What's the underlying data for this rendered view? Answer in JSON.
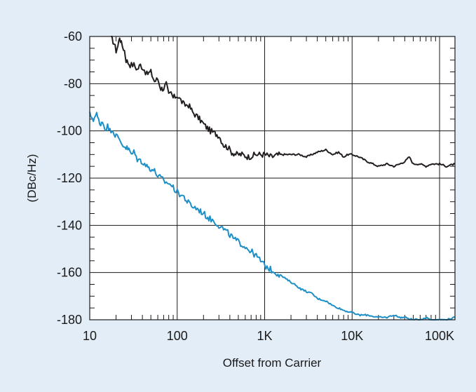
{
  "chart_data": {
    "type": "line",
    "title": "",
    "xlabel": "Offset from Carrier",
    "ylabel": "(DBc/Hz)",
    "x_scale": "log",
    "xlim": [
      10,
      150000
    ],
    "ylim": [
      -180,
      -60
    ],
    "grid": true,
    "legend": "none",
    "x_ticks": [
      {
        "value": 10,
        "label": "10"
      },
      {
        "value": 100,
        "label": "100"
      },
      {
        "value": 1000,
        "label": "1K"
      },
      {
        "value": 10000,
        "label": "10K"
      },
      {
        "value": 100000,
        "label": "100K"
      }
    ],
    "y_ticks": [
      {
        "value": -60,
        "label": "-60"
      },
      {
        "value": -80,
        "label": "-80"
      },
      {
        "value": -100,
        "label": "-100"
      },
      {
        "value": -120,
        "label": "-120"
      },
      {
        "value": -140,
        "label": "-140"
      },
      {
        "value": -160,
        "label": "-160"
      },
      {
        "value": -180,
        "label": "-180"
      }
    ],
    "series": [
      {
        "color": "#231f20",
        "points": [
          [
            17.5,
            -60
          ],
          [
            19,
            -63
          ],
          [
            20,
            -66
          ],
          [
            21,
            -64
          ],
          [
            22,
            -60
          ],
          [
            23,
            -63
          ],
          [
            25,
            -66
          ],
          [
            26,
            -70
          ],
          [
            29,
            -72
          ],
          [
            32,
            -72
          ],
          [
            35,
            -74
          ],
          [
            38,
            -72
          ],
          [
            42,
            -74
          ],
          [
            45,
            -76
          ],
          [
            50,
            -75
          ],
          [
            55,
            -79
          ],
          [
            60,
            -78
          ],
          [
            65,
            -82
          ],
          [
            70,
            -82
          ],
          [
            75,
            -80
          ],
          [
            80,
            -85
          ],
          [
            85,
            -84
          ],
          [
            90,
            -86
          ],
          [
            100,
            -85
          ],
          [
            110,
            -87
          ],
          [
            120,
            -89
          ],
          [
            135,
            -89
          ],
          [
            150,
            -92
          ],
          [
            170,
            -94
          ],
          [
            190,
            -96
          ],
          [
            210,
            -98
          ],
          [
            240,
            -100
          ],
          [
            270,
            -101
          ],
          [
            300,
            -102
          ],
          [
            320,
            -104
          ],
          [
            340,
            -106
          ],
          [
            380,
            -107
          ],
          [
            420,
            -109
          ],
          [
            480,
            -110
          ],
          [
            550,
            -110
          ],
          [
            650,
            -111
          ],
          [
            800,
            -110
          ],
          [
            1000,
            -110
          ],
          [
            1200,
            -111
          ],
          [
            1500,
            -110
          ],
          [
            2000,
            -110
          ],
          [
            2500,
            -110
          ],
          [
            3000,
            -111
          ],
          [
            4000,
            -109
          ],
          [
            5000,
            -108
          ],
          [
            6000,
            -110
          ],
          [
            7000,
            -109
          ],
          [
            8000,
            -111
          ],
          [
            9000,
            -110
          ],
          [
            10000,
            -110
          ],
          [
            12000,
            -111
          ],
          [
            15000,
            -113
          ],
          [
            20000,
            -115
          ],
          [
            25000,
            -114
          ],
          [
            30000,
            -115
          ],
          [
            35000,
            -114
          ],
          [
            40000,
            -113
          ],
          [
            45000,
            -111
          ],
          [
            50000,
            -114
          ],
          [
            60000,
            -114
          ],
          [
            70000,
            -115
          ],
          [
            80000,
            -114
          ],
          [
            100000,
            -114
          ],
          [
            120000,
            -115
          ],
          [
            150000,
            -114
          ]
        ]
      },
      {
        "color": "#1e8fc6",
        "points": [
          [
            10,
            -93
          ],
          [
            11,
            -95
          ],
          [
            12,
            -93
          ],
          [
            13,
            -97
          ],
          [
            14,
            -96
          ],
          [
            15,
            -99
          ],
          [
            16,
            -98
          ],
          [
            17,
            -100
          ],
          [
            18,
            -99
          ],
          [
            19,
            -101
          ],
          [
            20,
            -102
          ],
          [
            22,
            -104
          ],
          [
            24,
            -106
          ],
          [
            26,
            -107
          ],
          [
            28,
            -108
          ],
          [
            30,
            -110
          ],
          [
            32,
            -109
          ],
          [
            35,
            -112
          ],
          [
            40,
            -113
          ],
          [
            45,
            -115
          ],
          [
            50,
            -116
          ],
          [
            55,
            -117
          ],
          [
            60,
            -119
          ],
          [
            65,
            -120
          ],
          [
            70,
            -121
          ],
          [
            75,
            -122
          ],
          [
            80,
            -122
          ],
          [
            90,
            -124
          ],
          [
            100,
            -126
          ],
          [
            110,
            -127
          ],
          [
            120,
            -128
          ],
          [
            130,
            -130
          ],
          [
            150,
            -132
          ],
          [
            170,
            -133
          ],
          [
            200,
            -135
          ],
          [
            230,
            -137
          ],
          [
            260,
            -138
          ],
          [
            300,
            -140
          ],
          [
            350,
            -142
          ],
          [
            400,
            -144
          ],
          [
            450,
            -146
          ],
          [
            500,
            -147
          ],
          [
            600,
            -149
          ],
          [
            700,
            -151
          ],
          [
            800,
            -153
          ],
          [
            900,
            -155
          ],
          [
            1000,
            -157
          ],
          [
            1200,
            -159
          ],
          [
            1500,
            -161
          ],
          [
            1800,
            -163
          ],
          [
            2200,
            -165
          ],
          [
            2600,
            -167
          ],
          [
            3000,
            -168
          ],
          [
            3500,
            -169
          ],
          [
            4000,
            -171
          ],
          [
            5000,
            -172
          ],
          [
            6000,
            -174
          ],
          [
            7000,
            -175
          ],
          [
            8000,
            -176
          ],
          [
            10000,
            -177
          ],
          [
            12000,
            -178
          ],
          [
            15000,
            -178
          ],
          [
            20000,
            -179
          ],
          [
            25000,
            -179
          ],
          [
            30000,
            -178
          ],
          [
            35000,
            -179
          ],
          [
            40000,
            -179
          ],
          [
            50000,
            -180
          ],
          [
            60000,
            -180
          ],
          [
            70000,
            -179
          ],
          [
            80000,
            -180
          ],
          [
            100000,
            -180
          ],
          [
            120000,
            -180
          ],
          [
            150000,
            -179
          ]
        ]
      }
    ]
  }
}
